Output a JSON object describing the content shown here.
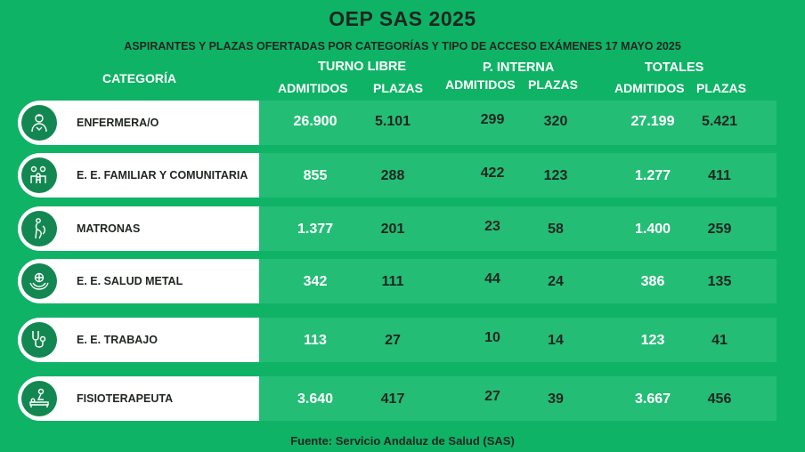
{
  "title": "OEP SAS 2025",
  "subtitle": "ASPIRANTES Y PLAZAS OFERTADAS POR CATEGORÍAS Y TIPO DE ACCESO EXÁMENES 17 MAYO 2025",
  "header": {
    "categoria": "CATEGORÍA",
    "turno_libre": "TURNO LIBRE",
    "p_interna": "P. INTERNA",
    "totales": "TOTALES",
    "admitidos": "ADMITIDOS",
    "plazas": "PLAZAS"
  },
  "rows": [
    {
      "categoria": "ENFERMERA/O",
      "icon": "nurse-icon",
      "tl_admitidos": "26.900",
      "tl_plazas": "5.101",
      "pi_admitidos": "299",
      "pi_plazas": "320",
      "tot_admitidos": "27.199",
      "tot_plazas": "5.421"
    },
    {
      "categoria": "E. E. FAMILIAR Y COMUNITARIA",
      "icon": "family-icon",
      "tl_admitidos": "855",
      "tl_plazas": "288",
      "pi_admitidos": "422",
      "pi_plazas": "123",
      "tot_admitidos": "1.277",
      "tot_plazas": "411"
    },
    {
      "categoria": "MATRONAS",
      "icon": "pregnant-icon",
      "tl_admitidos": "1.377",
      "tl_plazas": "201",
      "pi_admitidos": "23",
      "pi_plazas": "58",
      "tot_admitidos": "1.400",
      "tot_plazas": "259"
    },
    {
      "categoria": "E. E. SALUD METAL",
      "icon": "mental-health-icon",
      "tl_admitidos": "342",
      "tl_plazas": "111",
      "pi_admitidos": "44",
      "pi_plazas": "24",
      "tot_admitidos": "386",
      "tot_plazas": "135"
    },
    {
      "categoria": "E. E. TRABAJO",
      "icon": "stethoscope-icon",
      "tl_admitidos": "113",
      "tl_plazas": "27",
      "pi_admitidos": "10",
      "pi_plazas": "14",
      "tot_admitidos": "123",
      "tot_plazas": "41"
    },
    {
      "categoria": "FISIOTERAPEUTA",
      "icon": "physiotherapy-icon",
      "tl_admitidos": "3.640",
      "tl_plazas": "417",
      "pi_admitidos": "27",
      "pi_plazas": "39",
      "tot_admitidos": "3.667",
      "tot_plazas": "456"
    }
  ],
  "footer": "Fuente: Servicio Andaluz de Salud (SAS)",
  "colors": {
    "background": "#0fb366",
    "row_right": "#24bd76",
    "icon_circle": "#138751",
    "dark_text": "#1f2620"
  }
}
